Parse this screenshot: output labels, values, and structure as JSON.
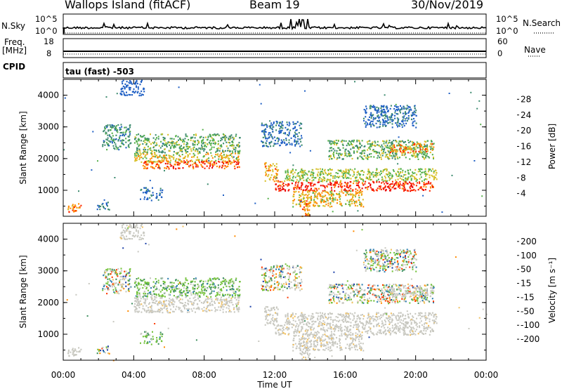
{
  "header": {
    "station": "Wallops Island (fitACF)",
    "beam": "Beam 19",
    "date": "30/Nov/2019"
  },
  "meta_panels": {
    "nsky_label": "N.Sky",
    "nsky_ticks": [
      "10^5",
      "10^0"
    ],
    "nsearch_label": "N.Search",
    "nsearch_ticks": [
      "10^5",
      "10^0"
    ],
    "freq_label": "Freq.",
    "freq_unit": "[MHz]",
    "freq_ticks": [
      "18",
      "8"
    ],
    "nave_label": "Nave",
    "nave_ticks": [
      "60",
      "0"
    ],
    "cpid_label": "CPID",
    "cpid_value": "tau (fast) -503"
  },
  "chart_data": [
    {
      "type": "heatmap",
      "quantity": "power",
      "ylabel": "Slant Range [km]",
      "xlabel": "Time UT",
      "x_ticks": [
        "00:00",
        "04:00",
        "08:00",
        "12:00",
        "16:00",
        "20:00",
        "00:00"
      ],
      "xlim_hours": [
        0,
        24
      ],
      "y_ticks": [
        1000,
        2000,
        3000,
        4000
      ],
      "ylim_km": [
        180,
        4500
      ],
      "colorbar": {
        "label": "Power [dB]",
        "ticks": [
          4,
          8,
          12,
          16,
          20,
          24,
          28
        ],
        "range": [
          0,
          32
        ],
        "colors": [
          "#0000ff",
          "#1f5fc4",
          "#3c8a6e",
          "#55b04a",
          "#d8c02a",
          "#ff8a00",
          "#ff2a00",
          "#e80000"
        ]
      },
      "echo_regions": [
        {
          "t0": 0.2,
          "t1": 1.0,
          "r0": 300,
          "r1": 600,
          "pmin": 18,
          "pmax": 28
        },
        {
          "t0": 1.9,
          "t1": 2.6,
          "r0": 400,
          "r1": 650,
          "pmin": 4,
          "pmax": 10
        },
        {
          "t0": 4.3,
          "t1": 5.6,
          "r0": 700,
          "r1": 1100,
          "pmin": 4,
          "pmax": 10
        },
        {
          "t0": 3.2,
          "t1": 4.6,
          "r0": 4000,
          "r1": 4500,
          "pmin": 4,
          "pmax": 8
        },
        {
          "t0": 2.2,
          "t1": 3.8,
          "r0": 2300,
          "r1": 3100,
          "pmin": 6,
          "pmax": 14
        },
        {
          "t0": 4.0,
          "t1": 10.0,
          "r0": 2200,
          "r1": 2800,
          "pmin": 8,
          "pmax": 18
        },
        {
          "t0": 4.0,
          "t1": 10.0,
          "r0": 1900,
          "r1": 2200,
          "pmin": 14,
          "pmax": 22
        },
        {
          "t0": 4.5,
          "t1": 10.0,
          "r0": 1700,
          "r1": 1950,
          "pmin": 20,
          "pmax": 30
        },
        {
          "t0": 11.4,
          "t1": 12.2,
          "r0": 1300,
          "r1": 1900,
          "pmin": 16,
          "pmax": 26
        },
        {
          "t0": 12.0,
          "t1": 21.0,
          "r0": 1000,
          "r1": 1300,
          "pmin": 22,
          "pmax": 32
        },
        {
          "t0": 12.5,
          "t1": 21.2,
          "r0": 1300,
          "r1": 1700,
          "pmin": 12,
          "pmax": 20
        },
        {
          "t0": 13.0,
          "t1": 17.0,
          "r0": 500,
          "r1": 1000,
          "pmin": 14,
          "pmax": 24
        },
        {
          "t0": 13.4,
          "t1": 14.0,
          "r0": 180,
          "r1": 700,
          "pmin": 18,
          "pmax": 28
        },
        {
          "t0": 15.0,
          "t1": 21.0,
          "r0": 2000,
          "r1": 2600,
          "pmin": 8,
          "pmax": 18
        },
        {
          "t0": 18.5,
          "t1": 21.0,
          "r0": 2200,
          "r1": 2500,
          "pmin": 16,
          "pmax": 26
        },
        {
          "t0": 11.2,
          "t1": 13.5,
          "r0": 2400,
          "r1": 3200,
          "pmin": 4,
          "pmax": 10
        },
        {
          "t0": 17.0,
          "t1": 20.0,
          "r0": 3000,
          "r1": 3700,
          "pmin": 4,
          "pmax": 10
        }
      ]
    },
    {
      "type": "heatmap",
      "quantity": "velocity",
      "ylabel": "Slant Range [km]",
      "xlabel": "Time UT",
      "x_ticks": [
        "00:00",
        "04:00",
        "08:00",
        "12:00",
        "16:00",
        "20:00",
        "00:00"
      ],
      "xlim_hours": [
        0,
        24
      ],
      "y_ticks": [
        1000,
        2000,
        3000,
        4000
      ],
      "ylim_km": [
        180,
        4500
      ],
      "colorbar": {
        "label": "Velocity [m s⁻¹]",
        "ticks": [
          "200",
          "100",
          "50",
          "15",
          "-15",
          "-50",
          "-100",
          "-200"
        ],
        "colors": [
          "#1b3fa8",
          "#2f7fb0",
          "#3f8f5f",
          "#73c23a",
          "#c8c8c0",
          "#f0c060",
          "#ff8a00",
          "#ff3a00",
          "#e00000"
        ]
      },
      "echo_regions": [
        {
          "t0": 0.2,
          "t1": 1.0,
          "r0": 300,
          "r1": 600,
          "cls": "ground"
        },
        {
          "t0": 1.9,
          "t1": 2.6,
          "r0": 400,
          "r1": 650,
          "cls": "mixed"
        },
        {
          "t0": 4.3,
          "t1": 5.6,
          "r0": 700,
          "r1": 1100,
          "cls": "pos"
        },
        {
          "t0": 3.2,
          "t1": 4.6,
          "r0": 4000,
          "r1": 4500,
          "cls": "ground"
        },
        {
          "t0": 2.2,
          "t1": 3.8,
          "r0": 2300,
          "r1": 3100,
          "cls": "mixed"
        },
        {
          "t0": 4.0,
          "t1": 10.0,
          "r0": 2200,
          "r1": 2800,
          "cls": "pos"
        },
        {
          "t0": 4.0,
          "t1": 10.0,
          "r0": 1700,
          "r1": 2200,
          "cls": "ground"
        },
        {
          "t0": 11.4,
          "t1": 12.2,
          "r0": 1300,
          "r1": 1900,
          "cls": "ground"
        },
        {
          "t0": 12.0,
          "t1": 21.0,
          "r0": 1000,
          "r1": 1300,
          "cls": "ground"
        },
        {
          "t0": 12.5,
          "t1": 21.2,
          "r0": 1300,
          "r1": 1700,
          "cls": "ground"
        },
        {
          "t0": 13.0,
          "t1": 17.0,
          "r0": 500,
          "r1": 1000,
          "cls": "ground"
        },
        {
          "t0": 13.4,
          "t1": 14.0,
          "r0": 180,
          "r1": 700,
          "cls": "ground"
        },
        {
          "t0": 15.0,
          "t1": 21.0,
          "r0": 2000,
          "r1": 2600,
          "cls": "mixed"
        },
        {
          "t0": 18.5,
          "t1": 21.0,
          "r0": 2200,
          "r1": 2500,
          "cls": "ground"
        },
        {
          "t0": 11.2,
          "t1": 13.5,
          "r0": 2400,
          "r1": 3200,
          "cls": "mixed"
        },
        {
          "t0": 17.0,
          "t1": 20.0,
          "r0": 3000,
          "r1": 3700,
          "cls": "mixed"
        }
      ]
    }
  ]
}
